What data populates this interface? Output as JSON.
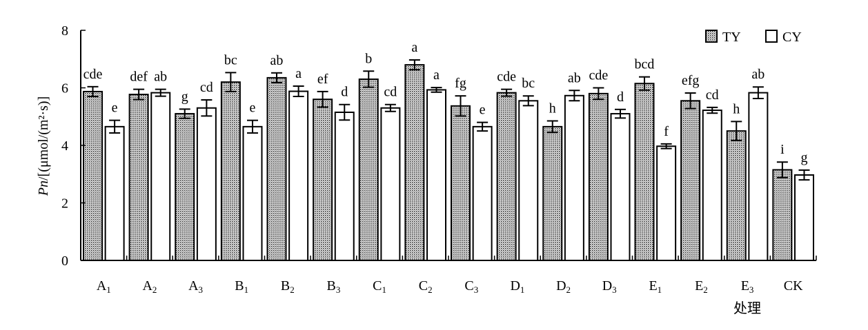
{
  "chart_data": {
    "type": "bar",
    "title": "",
    "xlabel": "处理",
    "ylabel_italic": "Pn",
    "ylabel_rest": "/[(μmol/(m²·s)]",
    "ylim": [
      0,
      8
    ],
    "yticks": [
      0,
      2,
      4,
      6,
      8
    ],
    "grid": false,
    "legend_position": "top-right",
    "categories": [
      {
        "base": "A",
        "sub": "1"
      },
      {
        "base": "A",
        "sub": "2"
      },
      {
        "base": "A",
        "sub": "3"
      },
      {
        "base": "B",
        "sub": "1"
      },
      {
        "base": "B",
        "sub": "2"
      },
      {
        "base": "B",
        "sub": "3"
      },
      {
        "base": "C",
        "sub": "1"
      },
      {
        "base": "C",
        "sub": "2"
      },
      {
        "base": "C",
        "sub": "3"
      },
      {
        "base": "D",
        "sub": "1"
      },
      {
        "base": "D",
        "sub": "2"
      },
      {
        "base": "D",
        "sub": "3"
      },
      {
        "base": "E",
        "sub": "1"
      },
      {
        "base": "E",
        "sub": "2"
      },
      {
        "base": "E",
        "sub": "3"
      },
      {
        "base": "CK",
        "sub": ""
      }
    ],
    "series": [
      {
        "name": "TY",
        "style": "dotted",
        "values": [
          5.87,
          5.77,
          5.1,
          6.2,
          6.35,
          5.6,
          6.3,
          6.8,
          5.37,
          5.83,
          4.65,
          5.8,
          6.15,
          5.55,
          4.5,
          3.15
        ],
        "errors": [
          0.17,
          0.18,
          0.16,
          0.33,
          0.17,
          0.27,
          0.28,
          0.17,
          0.35,
          0.12,
          0.2,
          0.2,
          0.23,
          0.27,
          0.33,
          0.27
        ],
        "labels": [
          "cde",
          "def",
          "g",
          "bc",
          "ab",
          "ef",
          "b",
          "a",
          "fg",
          "cde",
          "h",
          "cde",
          "bcd",
          "efg",
          "h",
          "i"
        ]
      },
      {
        "name": "CY",
        "style": "white",
        "values": [
          4.65,
          5.83,
          5.3,
          4.65,
          5.88,
          5.15,
          5.3,
          5.93,
          4.65,
          5.55,
          5.73,
          5.1,
          3.97,
          5.22,
          5.83,
          2.97
        ],
        "errors": [
          0.22,
          0.12,
          0.28,
          0.22,
          0.18,
          0.27,
          0.12,
          0.08,
          0.15,
          0.17,
          0.18,
          0.15,
          0.08,
          0.1,
          0.2,
          0.17
        ],
        "labels": [
          "e",
          "ab",
          "cd",
          "e",
          "a",
          "d",
          "cd",
          "a",
          "e",
          "bc",
          "ab",
          "d",
          "f",
          "cd",
          "ab",
          "g"
        ]
      }
    ]
  }
}
